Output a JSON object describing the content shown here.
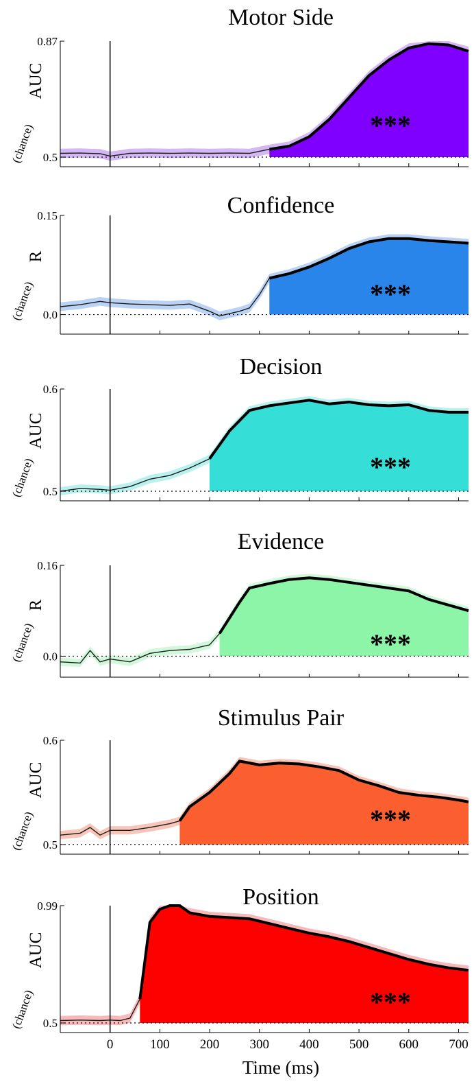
{
  "chart_data": [
    {
      "type": "area",
      "title": "Motor Side",
      "ylabel": "AUC",
      "chance_label": "(chance)",
      "ytick_labels": [
        "0.87",
        "0.5"
      ],
      "ylim": [
        0.5,
        0.87
      ],
      "xlim": [
        -100,
        720
      ],
      "color": "#7f00ff",
      "band_color": "#c9a6f0",
      "significance": "***",
      "sig_start": 290,
      "x": [
        -100,
        -60,
        -20,
        0,
        40,
        80,
        120,
        160,
        200,
        240,
        280,
        320,
        360,
        400,
        440,
        480,
        520,
        560,
        600,
        640,
        680,
        720
      ],
      "y": [
        0.512,
        0.513,
        0.511,
        0.503,
        0.512,
        0.513,
        0.512,
        0.513,
        0.512,
        0.513,
        0.512,
        0.525,
        0.535,
        0.565,
        0.62,
        0.69,
        0.76,
        0.81,
        0.848,
        0.862,
        0.858,
        0.838
      ]
    },
    {
      "type": "area",
      "title": "Confidence",
      "ylabel": "R",
      "chance_label": "(chance)",
      "ytick_labels": [
        "0.15",
        "0.0"
      ],
      "ylim": [
        -0.015,
        0.15
      ],
      "xlim": [
        -100,
        720
      ],
      "color": "#2a85ea",
      "band_color": "#a9c8f2",
      "significance": "***",
      "sig_start": 310,
      "x": [
        -100,
        -60,
        -20,
        0,
        40,
        80,
        120,
        160,
        200,
        220,
        260,
        280,
        300,
        320,
        360,
        400,
        440,
        480,
        520,
        560,
        600,
        640,
        680,
        720
      ],
      "y": [
        0.012,
        0.015,
        0.02,
        0.018,
        0.016,
        0.015,
        0.014,
        0.016,
        0.005,
        -0.002,
        0.005,
        0.01,
        0.03,
        0.055,
        0.062,
        0.072,
        0.085,
        0.1,
        0.11,
        0.115,
        0.115,
        0.112,
        0.11,
        0.108
      ]
    },
    {
      "type": "area",
      "title": "Decision",
      "ylabel": "AUC",
      "chance_label": "(chance)",
      "ytick_labels": [
        "0.6",
        "0.5"
      ],
      "ylim": [
        0.49,
        0.6
      ],
      "xlim": [
        -100,
        720
      ],
      "color": "#35dfd8",
      "band_color": "#a7eeea",
      "significance": "***",
      "sig_start": 180,
      "x": [
        -100,
        -60,
        -20,
        0,
        40,
        80,
        120,
        160,
        200,
        240,
        280,
        320,
        360,
        400,
        440,
        480,
        520,
        560,
        600,
        640,
        680,
        720
      ],
      "y": [
        0.49,
        0.493,
        0.492,
        0.491,
        0.495,
        0.503,
        0.507,
        0.515,
        0.525,
        0.555,
        0.577,
        0.582,
        0.585,
        0.588,
        0.584,
        0.586,
        0.583,
        0.582,
        0.583,
        0.577,
        0.575,
        0.575
      ]
    },
    {
      "type": "area",
      "title": "Evidence",
      "ylabel": "R",
      "chance_label": "(chance)",
      "ytick_labels": [
        "0.16",
        "0.0"
      ],
      "ylim": [
        -0.02,
        0.16
      ],
      "xlim": [
        -100,
        720
      ],
      "color": "#8cf5a8",
      "band_color": "#c5f6d2",
      "significance": "***",
      "sig_start": 210,
      "x": [
        -100,
        -60,
        -40,
        -20,
        0,
        40,
        80,
        120,
        160,
        200,
        220,
        260,
        280,
        320,
        360,
        400,
        440,
        480,
        520,
        560,
        600,
        640,
        680,
        720
      ],
      "y": [
        -0.01,
        -0.012,
        0.01,
        -0.01,
        -0.005,
        -0.01,
        0.005,
        0.01,
        0.012,
        0.02,
        0.04,
        0.095,
        0.12,
        0.128,
        0.135,
        0.138,
        0.135,
        0.13,
        0.125,
        0.12,
        0.115,
        0.1,
        0.09,
        0.08
      ]
    },
    {
      "type": "area",
      "title": "Stimulus Pair",
      "ylabel": "AUC",
      "chance_label": "(chance)",
      "ytick_labels": [
        "0.6",
        "0.5"
      ],
      "ylim": [
        0.49,
        0.6
      ],
      "xlim": [
        -100,
        720
      ],
      "color": "#fb5f30",
      "band_color": "#f6b8a8",
      "significance": "***",
      "sig_start": 140,
      "x": [
        -100,
        -60,
        -40,
        -20,
        0,
        40,
        80,
        120,
        140,
        160,
        200,
        240,
        260,
        300,
        340,
        380,
        420,
        460,
        500,
        540,
        580,
        620,
        660,
        700,
        720
      ],
      "y": [
        0.5,
        0.502,
        0.508,
        0.5,
        0.505,
        0.505,
        0.508,
        0.512,
        0.515,
        0.53,
        0.545,
        0.565,
        0.578,
        0.574,
        0.576,
        0.575,
        0.572,
        0.568,
        0.558,
        0.552,
        0.545,
        0.542,
        0.54,
        0.537,
        0.535
      ]
    },
    {
      "type": "area",
      "title": "Position",
      "ylabel": "AUC",
      "chance_label": "(chance)",
      "ytick_labels": [
        "0.99",
        "0.5"
      ],
      "ylim": [
        0.5,
        0.99
      ],
      "xlim": [
        -100,
        720
      ],
      "color": "#fd0000",
      "band_color": "#f5a9a9",
      "significance": "***",
      "sig_start": 50,
      "x": [
        -100,
        -60,
        -20,
        0,
        20,
        40,
        60,
        80,
        100,
        120,
        140,
        160,
        200,
        240,
        280,
        320,
        360,
        400,
        440,
        480,
        520,
        560,
        600,
        640,
        680,
        720
      ],
      "y": [
        0.51,
        0.512,
        0.51,
        0.512,
        0.51,
        0.52,
        0.6,
        0.92,
        0.975,
        0.99,
        0.99,
        0.96,
        0.945,
        0.94,
        0.935,
        0.915,
        0.895,
        0.875,
        0.86,
        0.84,
        0.815,
        0.79,
        0.765,
        0.745,
        0.73,
        0.72
      ]
    }
  ],
  "x_axis": {
    "label": "Time (ms)",
    "ticks": [
      0,
      100,
      200,
      300,
      400,
      500,
      600,
      700
    ],
    "tick_labels": [
      "0",
      "100",
      "200",
      "300",
      "400",
      "500",
      "600",
      "700"
    ]
  }
}
